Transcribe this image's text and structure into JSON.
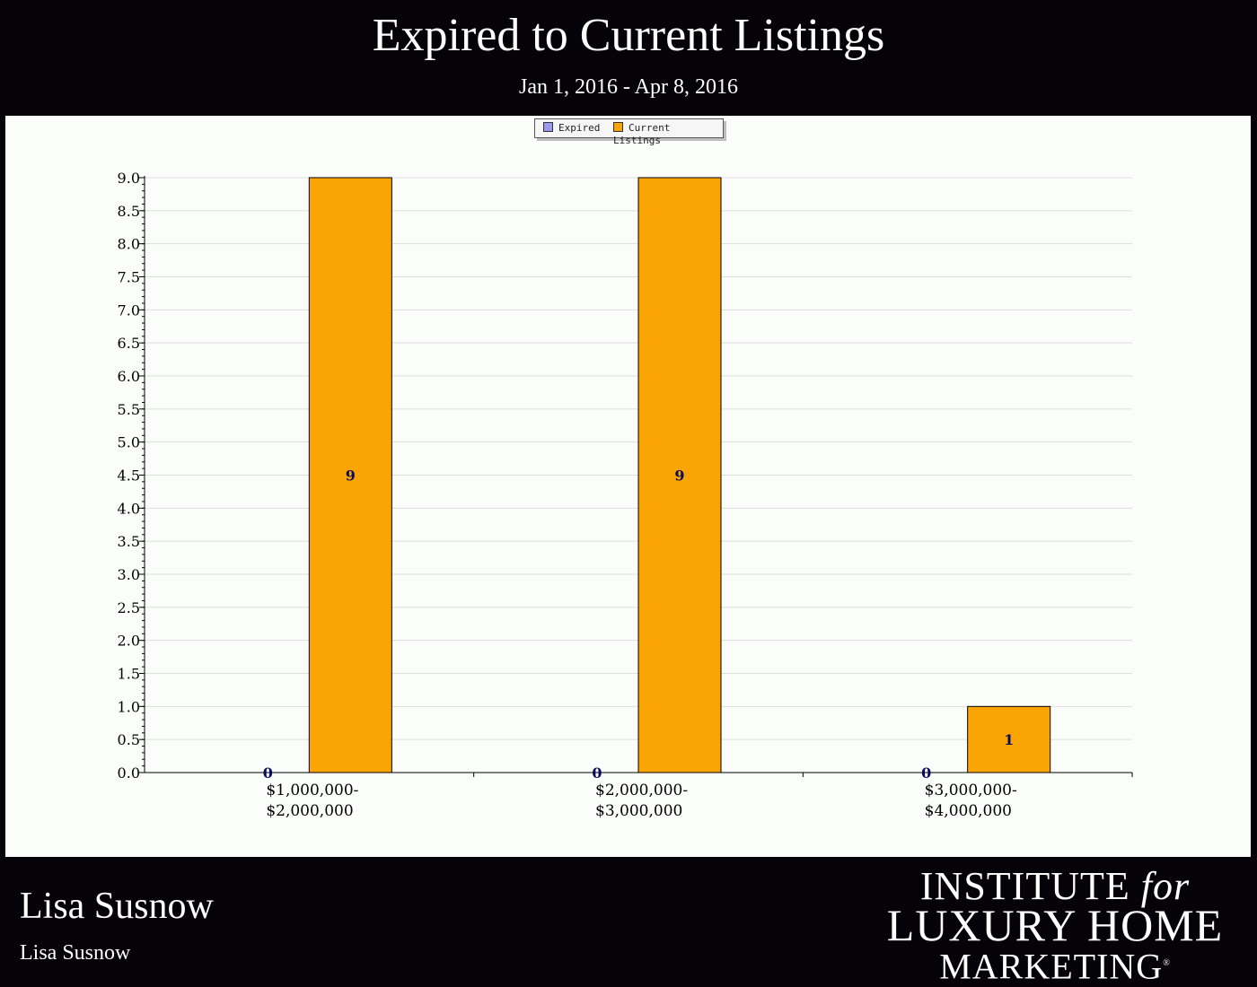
{
  "header": {
    "title": "Expired to Current Listings",
    "subtitle": "Jan 1, 2016 - Apr 8, 2016"
  },
  "footer": {
    "agent_name": "Lisa Susnow",
    "agent_subtitle": "Lisa Susnow",
    "logo_text": "INSTITUTE for LUXURY HOME MARKETING"
  },
  "colors": {
    "expired": "#9999ee",
    "current": "#fba505",
    "background": "#050307",
    "plot_background": "#fbfdfb",
    "value_label": "#0a0a5a"
  },
  "chart_data": {
    "type": "bar",
    "title": "Expired to Current Listings",
    "subtitle": "Jan 1, 2016 - Apr 8, 2016",
    "categories": [
      "$1,000,000-\n$2,000,000",
      "$2,000,000-\n$3,000,000",
      "$3,000,000-\n$4,000,000"
    ],
    "series": [
      {
        "name": "Expired",
        "values": [
          0,
          0,
          0
        ]
      },
      {
        "name": "Current Listings",
        "values": [
          9,
          9,
          1
        ]
      }
    ],
    "data_labels": [
      [
        "0",
        "0",
        "0"
      ],
      [
        "9",
        "9",
        "1"
      ]
    ],
    "xlabel": "",
    "ylabel": "",
    "ylim": [
      0,
      9
    ],
    "yticks": [
      "0.0",
      "0.5",
      "1.0",
      "1.5",
      "2.0",
      "2.5",
      "3.0",
      "3.5",
      "4.0",
      "4.5",
      "5.0",
      "5.5",
      "6.0",
      "6.5",
      "7.0",
      "7.5",
      "8.0",
      "8.5",
      "9.0"
    ],
    "grid": true,
    "legend_position": "top-center"
  }
}
